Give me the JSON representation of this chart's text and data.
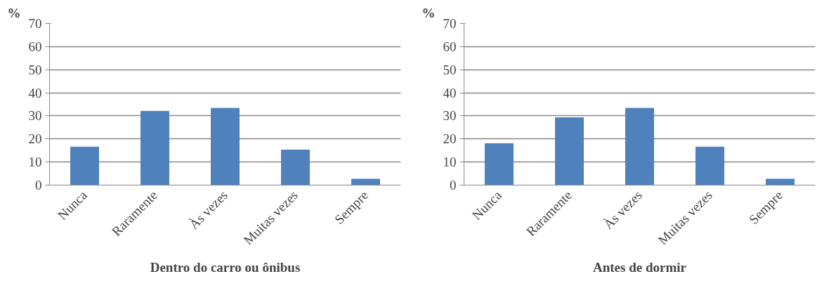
{
  "chart_data": [
    {
      "type": "bar",
      "title": "Dentro do carro ou ônibus",
      "ylabel": "%",
      "categories": [
        "Nunca",
        "Raramente",
        "Às vezes",
        "Muitas vezes",
        "Sempre"
      ],
      "values": [
        16.5,
        32,
        33.3,
        15.2,
        2.6
      ],
      "color": "#4f81bd",
      "ylim": [
        0,
        70
      ],
      "yticks": [
        0,
        10,
        20,
        30,
        40,
        50,
        60,
        70
      ],
      "grid": "y"
    },
    {
      "type": "bar",
      "title": "Antes de dormir",
      "ylabel": "%",
      "categories": [
        "Nunca",
        "Raramente",
        "Às vezes",
        "Muitas vezes",
        "Sempre"
      ],
      "values": [
        18,
        29.2,
        33.3,
        16.5,
        2.6
      ],
      "color": "#4f81bd",
      "ylim": [
        0,
        70
      ],
      "yticks": [
        0,
        10,
        20,
        30,
        40,
        50,
        60,
        70
      ],
      "grid": "y"
    }
  ]
}
